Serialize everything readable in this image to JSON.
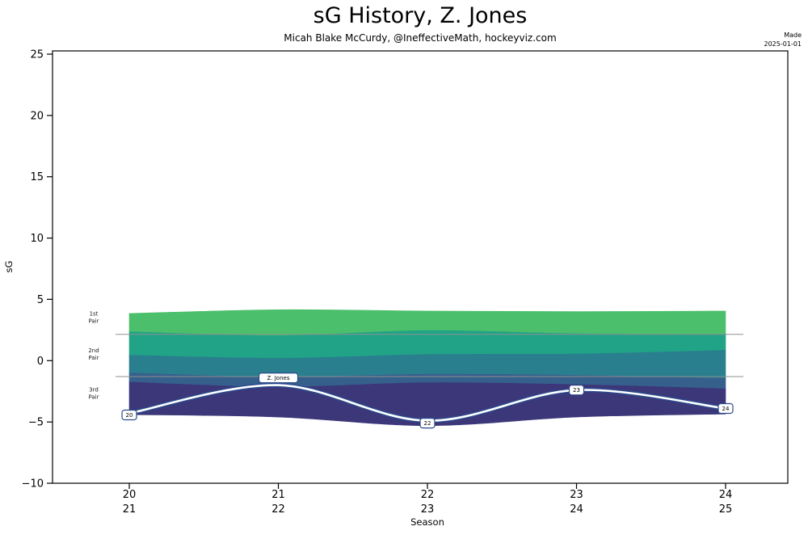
{
  "chart_data": {
    "type": "area",
    "title": "sG History, Z. Jones",
    "subtitle": "Micah Blake McCurdy, @IneffectiveMath, hockeyviz.com",
    "made": {
      "line1": "Made",
      "line2": "2025-01-01"
    },
    "xlabel": "Season",
    "ylabel": "sG",
    "ylim": [
      -10,
      25
    ],
    "yticks": [
      {
        "value": 25,
        "label": "25"
      },
      {
        "value": 20,
        "label": "20"
      },
      {
        "value": 15,
        "label": "15"
      },
      {
        "value": 10,
        "label": "10"
      },
      {
        "value": 5,
        "label": "5"
      },
      {
        "value": 0,
        "label": "0"
      },
      {
        "value": -5,
        "label": "−5"
      },
      {
        "value": -10,
        "label": "−10"
      }
    ],
    "seasons": [
      [
        "20",
        "21"
      ],
      [
        "21",
        "22"
      ],
      [
        "22",
        "23"
      ],
      [
        "23",
        "24"
      ],
      [
        "24",
        "25"
      ]
    ],
    "reference_lines": [
      2.15,
      -1.3
    ],
    "tier_labels": [
      {
        "lines": [
          "1st",
          "Pair"
        ],
        "y": 3.6
      },
      {
        "lines": [
          "2nd",
          "Pair"
        ],
        "y": 0.6
      },
      {
        "lines": [
          "3rd",
          "Pair"
        ],
        "y": -2.6
      }
    ],
    "bands": {
      "colors": [
        "#4bbf6b",
        "#20a386",
        "#2a7f8e",
        "#36608c",
        "#3b3779"
      ],
      "boundaries": [
        [
          3.85,
          4.15,
          4.05,
          4.0,
          4.05
        ],
        [
          2.35,
          2.05,
          2.45,
          2.2,
          2.15
        ],
        [
          0.45,
          0.2,
          0.5,
          0.55,
          0.85
        ],
        [
          -1.0,
          -1.35,
          -1.1,
          -1.2,
          -1.45
        ],
        [
          -1.75,
          -2.15,
          -1.8,
          -1.95,
          -2.3
        ],
        [
          -4.4,
          -4.6,
          -5.3,
          -4.6,
          -4.35
        ]
      ]
    },
    "player": {
      "name": "Z. Jones",
      "values": [
        -4.3,
        -2.0,
        -4.9,
        -2.4,
        -3.9
      ],
      "point_labels": [
        {
          "text": "20",
          "dy": 2
        },
        {
          "text": "Z. Jones",
          "dy": -9
        },
        {
          "text": "22",
          "dy": 3
        },
        {
          "text": "23",
          "dy": 0
        },
        {
          "text": "24",
          "dy": 0
        }
      ],
      "core_color": "#ffffff",
      "outline_color": "#2b4a8b"
    }
  }
}
